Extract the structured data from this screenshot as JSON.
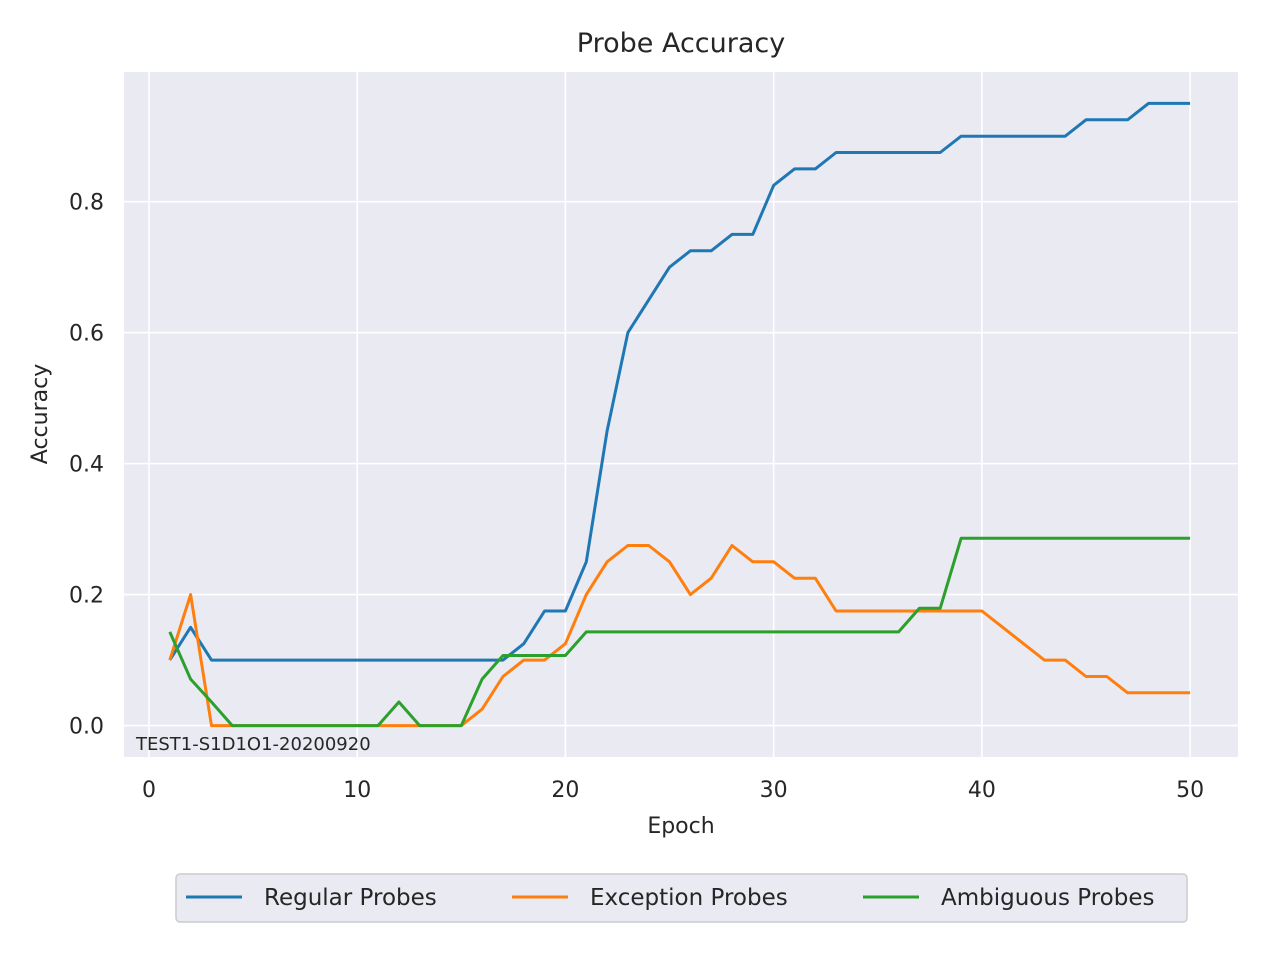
{
  "chart_data": {
    "type": "line",
    "title": "Probe Accuracy",
    "xlabel": "Epoch",
    "ylabel": "Accuracy",
    "xlim": [
      -1.2,
      52.3
    ],
    "ylim": [
      -0.048,
      0.998
    ],
    "xticks": [
      0,
      10,
      20,
      30,
      40,
      50
    ],
    "yticks": [
      0.0,
      0.2,
      0.4,
      0.6,
      0.8
    ],
    "xtick_labels": [
      "0",
      "10",
      "20",
      "30",
      "40",
      "50"
    ],
    "ytick_labels": [
      "0.0",
      "0.2",
      "0.4",
      "0.6",
      "0.8"
    ],
    "grid": true,
    "legend_position": "bottom-center outside",
    "annotation": "TEST1-S1D1O1-20200920",
    "x": [
      1,
      2,
      3,
      4,
      5,
      6,
      7,
      8,
      9,
      10,
      11,
      12,
      13,
      14,
      15,
      16,
      17,
      18,
      19,
      20,
      21,
      22,
      23,
      24,
      25,
      26,
      27,
      28,
      29,
      30,
      31,
      32,
      33,
      34,
      35,
      36,
      37,
      38,
      39,
      40,
      41,
      42,
      43,
      44,
      45,
      46,
      47,
      48,
      49,
      50
    ],
    "series": [
      {
        "name": "Regular Probes",
        "color": "#1f77b4",
        "values": [
          0.1,
          0.15,
          0.1,
          0.1,
          0.1,
          0.1,
          0.1,
          0.1,
          0.1,
          0.1,
          0.1,
          0.1,
          0.1,
          0.1,
          0.1,
          0.1,
          0.1,
          0.125,
          0.175,
          0.175,
          0.25,
          0.45,
          0.6,
          0.65,
          0.7,
          0.725,
          0.725,
          0.75,
          0.75,
          0.825,
          0.85,
          0.85,
          0.875,
          0.875,
          0.875,
          0.875,
          0.875,
          0.875,
          0.9,
          0.9,
          0.9,
          0.9,
          0.9,
          0.9,
          0.925,
          0.925,
          0.925,
          0.95,
          0.95,
          0.95
        ]
      },
      {
        "name": "Exception Probes",
        "color": "#ff7f0e",
        "values": [
          0.1,
          0.2,
          0.0,
          0.0,
          0.0,
          0.0,
          0.0,
          0.0,
          0.0,
          0.0,
          0.0,
          0.0,
          0.0,
          0.0,
          0.0,
          0.025,
          0.075,
          0.1,
          0.1,
          0.125,
          0.2,
          0.25,
          0.275,
          0.275,
          0.25,
          0.2,
          0.225,
          0.275,
          0.25,
          0.25,
          0.225,
          0.225,
          0.175,
          0.175,
          0.175,
          0.175,
          0.175,
          0.175,
          0.175,
          0.175,
          0.15,
          0.125,
          0.1,
          0.1,
          0.075,
          0.075,
          0.05,
          0.05,
          0.05,
          0.05
        ]
      },
      {
        "name": "Ambiguous Probes",
        "color": "#2ca02c",
        "values": [
          0.143,
          0.071,
          0.036,
          0.0,
          0.0,
          0.0,
          0.0,
          0.0,
          0.0,
          0.0,
          0.0,
          0.036,
          0.0,
          0.0,
          0.0,
          0.071,
          0.107,
          0.107,
          0.107,
          0.107,
          0.143,
          0.143,
          0.143,
          0.143,
          0.143,
          0.143,
          0.143,
          0.143,
          0.143,
          0.143,
          0.143,
          0.143,
          0.143,
          0.143,
          0.143,
          0.143,
          0.179,
          0.179,
          0.286,
          0.286,
          0.286,
          0.286,
          0.286,
          0.286,
          0.286,
          0.286,
          0.286,
          0.286,
          0.286,
          0.286
        ]
      }
    ],
    "colors": {
      "plot_background": "#eaeaf2",
      "grid": "#ffffff",
      "legend_border": "#cccccc"
    }
  }
}
